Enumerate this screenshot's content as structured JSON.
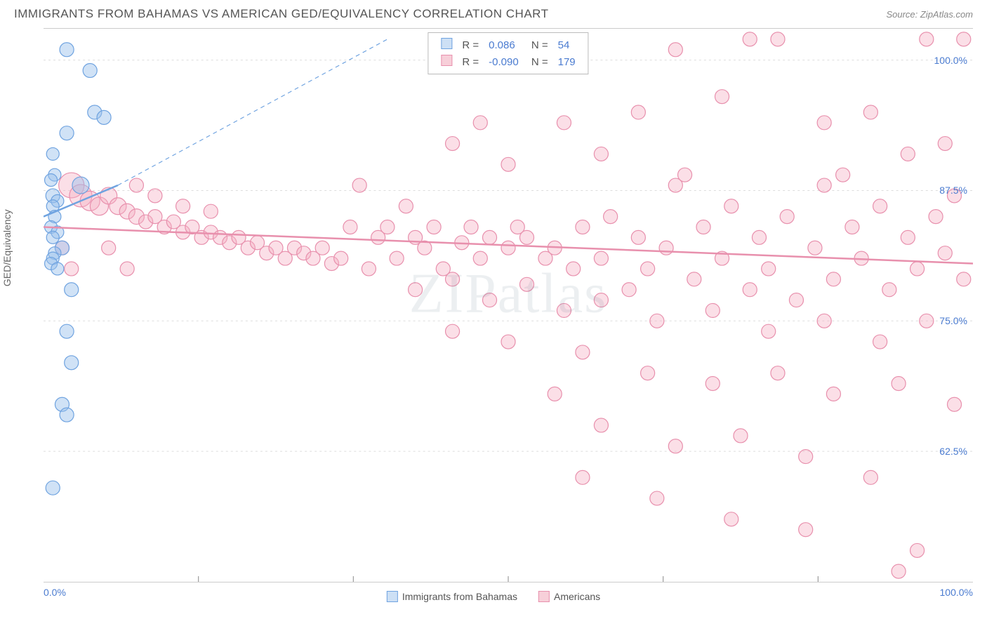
{
  "title": "IMMIGRANTS FROM BAHAMAS VS AMERICAN GED/EQUIVALENCY CORRELATION CHART",
  "source": "Source: ZipAtlas.com",
  "watermark": "ZIPatlas",
  "chart": {
    "type": "scatter",
    "ylabel": "GED/Equivalency",
    "xlim": [
      0,
      100
    ],
    "ylim": [
      50,
      103
    ],
    "xticks": [
      {
        "v": 0,
        "label": "0.0%"
      },
      {
        "v": 100,
        "label": "100.0%"
      }
    ],
    "yticks": [
      {
        "v": 62.5,
        "label": "62.5%"
      },
      {
        "v": 75.0,
        "label": "75.0%"
      },
      {
        "v": 87.5,
        "label": "87.5%"
      },
      {
        "v": 100.0,
        "label": "100.0%"
      }
    ],
    "xgrid_vals": [
      16.67,
      33.33,
      50,
      66.67,
      83.33
    ],
    "grid_color": "#dddddd",
    "background_color": "#ffffff",
    "marker_base_r": 10,
    "series": [
      {
        "name": "Immigrants from Bahamas",
        "color_stroke": "#6fa3e0",
        "color_fill": "rgba(150,190,235,0.45)",
        "legend_fill": "#cde0f5",
        "trend": {
          "x1": 0,
          "y1": 85,
          "x2": 8,
          "y2": 88,
          "dashed_ext": {
            "x2": 37,
            "y2": 102
          }
        },
        "stats": {
          "R": "0.086",
          "N": "54"
        },
        "points": [
          {
            "x": 2.5,
            "y": 101,
            "r": 10
          },
          {
            "x": 5,
            "y": 99,
            "r": 10
          },
          {
            "x": 5.5,
            "y": 95,
            "r": 10
          },
          {
            "x": 6.5,
            "y": 94.5,
            "r": 10
          },
          {
            "x": 2.5,
            "y": 93,
            "r": 10
          },
          {
            "x": 1,
            "y": 91,
            "r": 9
          },
          {
            "x": 1.2,
            "y": 89,
            "r": 9
          },
          {
            "x": 0.8,
            "y": 88.5,
            "r": 9
          },
          {
            "x": 1,
            "y": 87,
            "r": 10
          },
          {
            "x": 1.5,
            "y": 86.5,
            "r": 9
          },
          {
            "x": 1,
            "y": 86,
            "r": 9
          },
          {
            "x": 4,
            "y": 88,
            "r": 12
          },
          {
            "x": 1.2,
            "y": 85,
            "r": 9
          },
          {
            "x": 0.8,
            "y": 84,
            "r": 9
          },
          {
            "x": 1.5,
            "y": 83.5,
            "r": 9
          },
          {
            "x": 1,
            "y": 83,
            "r": 9
          },
          {
            "x": 2,
            "y": 82,
            "r": 10
          },
          {
            "x": 1.2,
            "y": 81.5,
            "r": 9
          },
          {
            "x": 1,
            "y": 81,
            "r": 9
          },
          {
            "x": 0.8,
            "y": 80.5,
            "r": 9
          },
          {
            "x": 1.5,
            "y": 80,
            "r": 9
          },
          {
            "x": 3,
            "y": 78,
            "r": 10
          },
          {
            "x": 2.5,
            "y": 74,
            "r": 10
          },
          {
            "x": 3,
            "y": 71,
            "r": 10
          },
          {
            "x": 2,
            "y": 67,
            "r": 10
          },
          {
            "x": 2.5,
            "y": 66,
            "r": 10
          },
          {
            "x": 1,
            "y": 59,
            "r": 10
          }
        ]
      },
      {
        "name": "Americans",
        "color_stroke": "#e890ad",
        "color_fill": "rgba(245,175,195,0.40)",
        "legend_fill": "#f7cfd9",
        "trend": {
          "x1": 0,
          "y1": 84,
          "x2": 100,
          "y2": 80.5
        },
        "stats": {
          "R": "-0.090",
          "N": "179"
        },
        "points": [
          {
            "x": 3,
            "y": 88,
            "r": 18
          },
          {
            "x": 4,
            "y": 87,
            "r": 16
          },
          {
            "x": 5,
            "y": 86.5,
            "r": 14
          },
          {
            "x": 6,
            "y": 86,
            "r": 13
          },
          {
            "x": 7,
            "y": 87,
            "r": 12
          },
          {
            "x": 8,
            "y": 86,
            "r": 12
          },
          {
            "x": 9,
            "y": 85.5,
            "r": 11
          },
          {
            "x": 10,
            "y": 85,
            "r": 11
          },
          {
            "x": 11,
            "y": 84.5,
            "r": 10
          },
          {
            "x": 12,
            "y": 85,
            "r": 10
          },
          {
            "x": 13,
            "y": 84,
            "r": 10
          },
          {
            "x": 14,
            "y": 84.5,
            "r": 10
          },
          {
            "x": 15,
            "y": 83.5,
            "r": 10
          },
          {
            "x": 16,
            "y": 84,
            "r": 10
          },
          {
            "x": 17,
            "y": 83,
            "r": 10
          },
          {
            "x": 18,
            "y": 83.5,
            "r": 10
          },
          {
            "x": 19,
            "y": 83,
            "r": 10
          },
          {
            "x": 20,
            "y": 82.5,
            "r": 10
          },
          {
            "x": 21,
            "y": 83,
            "r": 10
          },
          {
            "x": 22,
            "y": 82,
            "r": 10
          },
          {
            "x": 23,
            "y": 82.5,
            "r": 10
          },
          {
            "x": 24,
            "y": 81.5,
            "r": 10
          },
          {
            "x": 25,
            "y": 82,
            "r": 10
          },
          {
            "x": 26,
            "y": 81,
            "r": 10
          },
          {
            "x": 27,
            "y": 82,
            "r": 10
          },
          {
            "x": 28,
            "y": 81.5,
            "r": 10
          },
          {
            "x": 29,
            "y": 81,
            "r": 10
          },
          {
            "x": 30,
            "y": 82,
            "r": 10
          },
          {
            "x": 31,
            "y": 80.5,
            "r": 10
          },
          {
            "x": 32,
            "y": 81,
            "r": 10
          },
          {
            "x": 10,
            "y": 88,
            "r": 10
          },
          {
            "x": 12,
            "y": 87,
            "r": 10
          },
          {
            "x": 15,
            "y": 86,
            "r": 10
          },
          {
            "x": 18,
            "y": 85.5,
            "r": 10
          },
          {
            "x": 33,
            "y": 84,
            "r": 10
          },
          {
            "x": 35,
            "y": 80,
            "r": 10
          },
          {
            "x": 36,
            "y": 83,
            "r": 10
          },
          {
            "x": 37,
            "y": 84,
            "r": 10
          },
          {
            "x": 38,
            "y": 81,
            "r": 10
          },
          {
            "x": 40,
            "y": 83,
            "r": 10
          },
          {
            "x": 41,
            "y": 82,
            "r": 10
          },
          {
            "x": 42,
            "y": 84,
            "r": 10
          },
          {
            "x": 43,
            "y": 80,
            "r": 10
          },
          {
            "x": 45,
            "y": 82.5,
            "r": 10
          },
          {
            "x": 46,
            "y": 84,
            "r": 10
          },
          {
            "x": 47,
            "y": 81,
            "r": 10
          },
          {
            "x": 48,
            "y": 83,
            "r": 10
          },
          {
            "x": 50,
            "y": 82,
            "r": 10
          },
          {
            "x": 51,
            "y": 84,
            "r": 10
          },
          {
            "x": 52,
            "y": 83,
            "r": 10
          },
          {
            "x": 54,
            "y": 81,
            "r": 10
          },
          {
            "x": 55,
            "y": 82,
            "r": 10
          },
          {
            "x": 57,
            "y": 80,
            "r": 10
          },
          {
            "x": 58,
            "y": 84,
            "r": 10
          },
          {
            "x": 60,
            "y": 81,
            "r": 10
          },
          {
            "x": 61,
            "y": 85,
            "r": 10
          },
          {
            "x": 63,
            "y": 78,
            "r": 10
          },
          {
            "x": 64,
            "y": 83,
            "r": 10
          },
          {
            "x": 65,
            "y": 80,
            "r": 10
          },
          {
            "x": 67,
            "y": 82,
            "r": 10
          },
          {
            "x": 68,
            "y": 88,
            "r": 10
          },
          {
            "x": 70,
            "y": 79,
            "r": 10
          },
          {
            "x": 71,
            "y": 84,
            "r": 10
          },
          {
            "x": 73,
            "y": 81,
            "r": 10
          },
          {
            "x": 74,
            "y": 86,
            "r": 10
          },
          {
            "x": 76,
            "y": 78,
            "r": 10
          },
          {
            "x": 77,
            "y": 83,
            "r": 10
          },
          {
            "x": 78,
            "y": 80,
            "r": 10
          },
          {
            "x": 80,
            "y": 85,
            "r": 10
          },
          {
            "x": 81,
            "y": 77,
            "r": 10
          },
          {
            "x": 83,
            "y": 82,
            "r": 10
          },
          {
            "x": 84,
            "y": 88,
            "r": 10
          },
          {
            "x": 85,
            "y": 79,
            "r": 10
          },
          {
            "x": 87,
            "y": 84,
            "r": 10
          },
          {
            "x": 88,
            "y": 81,
            "r": 10
          },
          {
            "x": 90,
            "y": 86,
            "r": 10
          },
          {
            "x": 91,
            "y": 78,
            "r": 10
          },
          {
            "x": 93,
            "y": 83,
            "r": 10
          },
          {
            "x": 94,
            "y": 80,
            "r": 10
          },
          {
            "x": 96,
            "y": 85,
            "r": 10
          },
          {
            "x": 97,
            "y": 81.5,
            "r": 10
          },
          {
            "x": 98,
            "y": 87,
            "r": 10
          },
          {
            "x": 99,
            "y": 79,
            "r": 10
          },
          {
            "x": 40,
            "y": 78,
            "r": 10
          },
          {
            "x": 44,
            "y": 79,
            "r": 10
          },
          {
            "x": 48,
            "y": 77,
            "r": 10
          },
          {
            "x": 52,
            "y": 78.5,
            "r": 10
          },
          {
            "x": 56,
            "y": 76,
            "r": 10
          },
          {
            "x": 60,
            "y": 77,
            "r": 10
          },
          {
            "x": 66,
            "y": 75,
            "r": 10
          },
          {
            "x": 72,
            "y": 76,
            "r": 10
          },
          {
            "x": 78,
            "y": 74,
            "r": 10
          },
          {
            "x": 84,
            "y": 75,
            "r": 10
          },
          {
            "x": 90,
            "y": 73,
            "r": 10
          },
          {
            "x": 95,
            "y": 75,
            "r": 10
          },
          {
            "x": 44,
            "y": 74,
            "r": 10
          },
          {
            "x": 50,
            "y": 73,
            "r": 10
          },
          {
            "x": 58,
            "y": 72,
            "r": 10
          },
          {
            "x": 65,
            "y": 70,
            "r": 10
          },
          {
            "x": 72,
            "y": 69,
            "r": 10
          },
          {
            "x": 79,
            "y": 70,
            "r": 10
          },
          {
            "x": 85,
            "y": 68,
            "r": 10
          },
          {
            "x": 92,
            "y": 69,
            "r": 10
          },
          {
            "x": 98,
            "y": 67,
            "r": 10
          },
          {
            "x": 55,
            "y": 68,
            "r": 10
          },
          {
            "x": 60,
            "y": 65,
            "r": 10
          },
          {
            "x": 68,
            "y": 63,
            "r": 10
          },
          {
            "x": 75,
            "y": 64,
            "r": 10
          },
          {
            "x": 82,
            "y": 62,
            "r": 10
          },
          {
            "x": 89,
            "y": 60,
            "r": 10
          },
          {
            "x": 58,
            "y": 60,
            "r": 10
          },
          {
            "x": 66,
            "y": 58,
            "r": 10
          },
          {
            "x": 74,
            "y": 56,
            "r": 10
          },
          {
            "x": 82,
            "y": 55,
            "r": 10
          },
          {
            "x": 94,
            "y": 53,
            "r": 10
          },
          {
            "x": 92,
            "y": 51,
            "r": 10
          },
          {
            "x": 44,
            "y": 92,
            "r": 10
          },
          {
            "x": 50,
            "y": 90,
            "r": 10
          },
          {
            "x": 56,
            "y": 94,
            "r": 10
          },
          {
            "x": 47,
            "y": 94,
            "r": 10
          },
          {
            "x": 60,
            "y": 91,
            "r": 10
          },
          {
            "x": 64,
            "y": 95,
            "r": 10
          },
          {
            "x": 69,
            "y": 89,
            "r": 10
          },
          {
            "x": 73,
            "y": 96.5,
            "r": 10
          },
          {
            "x": 76,
            "y": 102,
            "r": 10
          },
          {
            "x": 79,
            "y": 102,
            "r": 10
          },
          {
            "x": 84,
            "y": 94,
            "r": 10
          },
          {
            "x": 86,
            "y": 89,
            "r": 10
          },
          {
            "x": 89,
            "y": 95,
            "r": 10
          },
          {
            "x": 93,
            "y": 91,
            "r": 10
          },
          {
            "x": 97,
            "y": 92,
            "r": 10
          },
          {
            "x": 99,
            "y": 102,
            "r": 10
          },
          {
            "x": 95,
            "y": 102,
            "r": 10
          },
          {
            "x": 68,
            "y": 101,
            "r": 10
          },
          {
            "x": 34,
            "y": 88,
            "r": 10
          },
          {
            "x": 39,
            "y": 86,
            "r": 10
          },
          {
            "x": 7,
            "y": 82,
            "r": 10
          },
          {
            "x": 9,
            "y": 80,
            "r": 10
          },
          {
            "x": 2,
            "y": 82,
            "r": 10
          },
          {
            "x": 3,
            "y": 80,
            "r": 10
          }
        ]
      }
    ]
  }
}
